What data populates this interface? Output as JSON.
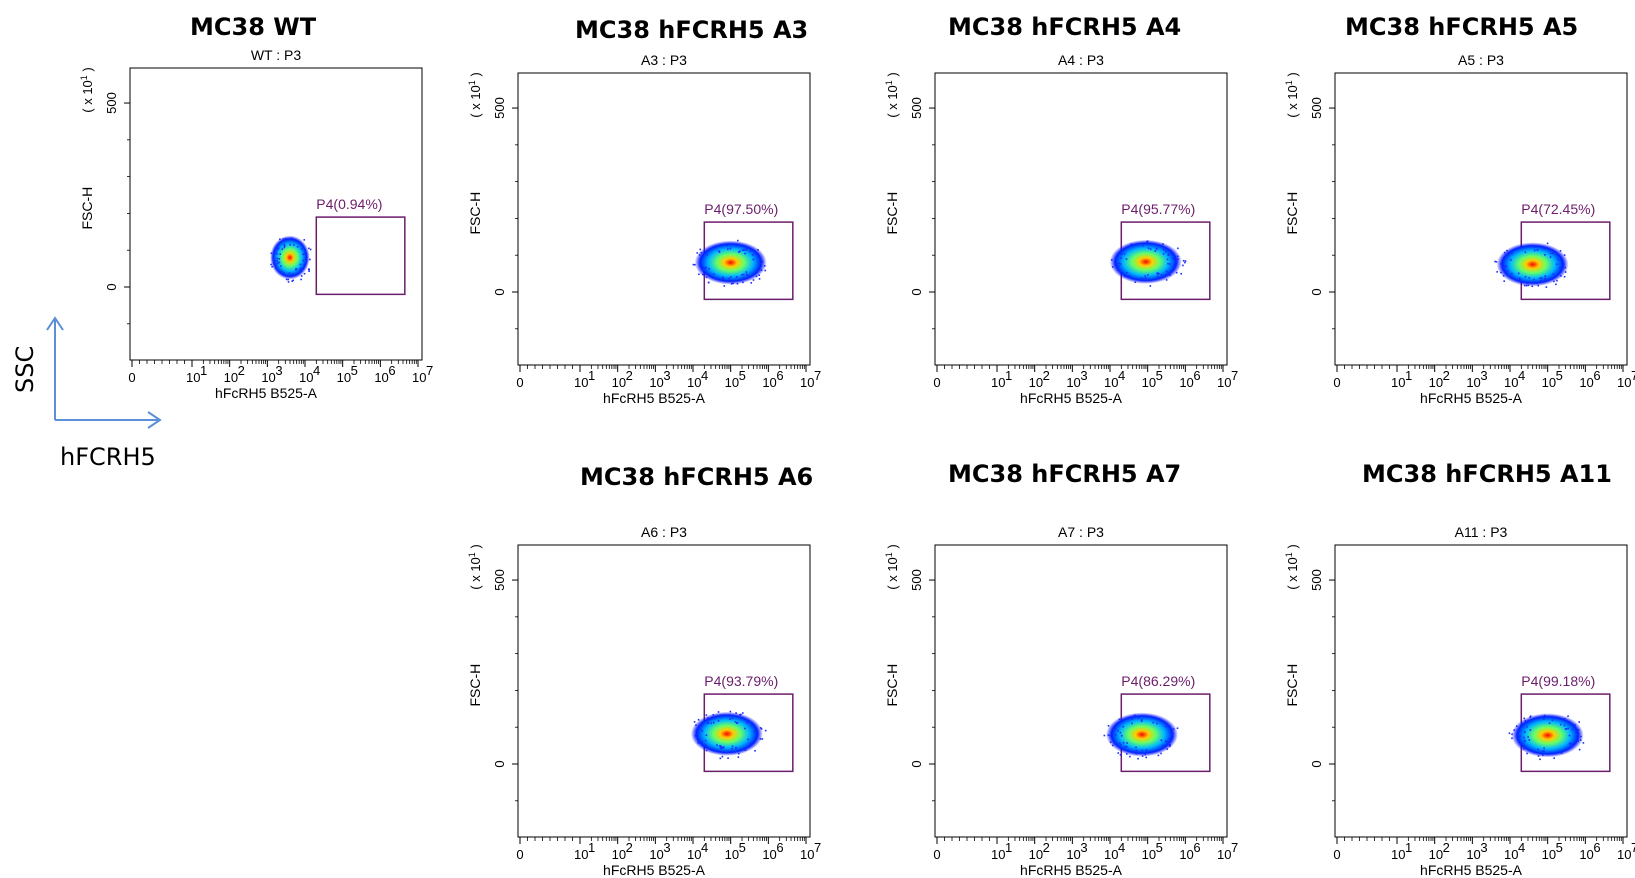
{
  "legend": {
    "y_arrow_label": "SSC",
    "x_arrow_label": "hFCRH5",
    "arrow_color": "#5b8fd8"
  },
  "colors": {
    "gate": "#6b1d6b",
    "density": [
      "#0000ff",
      "#00b0ff",
      "#00ff90",
      "#ffff00",
      "#ff0000"
    ]
  },
  "chart_data": [
    {
      "type": "scatter",
      "title": "MC38  WT",
      "subtitle": "WT : P3",
      "xlabel": "hFcRH5 B525-A",
      "ylabel": "FSC-H",
      "y_multiplier": "( x 10",
      "x_scale": "log",
      "x_ticks": [
        "0",
        "10",
        "10",
        "10",
        "10",
        "10",
        "10",
        "10"
      ],
      "x_tick_exp": [
        "",
        "1",
        "2",
        "3",
        "4",
        "5",
        "6",
        "7"
      ],
      "y_ticks": [
        "0",
        "500"
      ],
      "gate": {
        "name": "P4",
        "label": "P4(0.94%)",
        "percent": 0.94
      },
      "population": {
        "center_log10": 3.6,
        "center_y": 80
      }
    },
    {
      "type": "scatter",
      "title": "MC38 hFCRH5 A3",
      "subtitle": "A3 : P3",
      "xlabel": "hFcRH5 B525-A",
      "ylabel": "FSC-H",
      "y_multiplier": "( x 10",
      "x_scale": "log",
      "x_ticks": [
        "0",
        "10",
        "10",
        "10",
        "10",
        "10",
        "10",
        "10"
      ],
      "x_tick_exp": [
        "",
        "1",
        "2",
        "3",
        "4",
        "5",
        "6",
        "7"
      ],
      "y_ticks": [
        "0",
        "500"
      ],
      "gate": {
        "name": "P4",
        "label": "P4(97.50%)",
        "percent": 97.5
      },
      "population": {
        "center_log10": 5.0,
        "center_y": 80
      }
    },
    {
      "type": "scatter",
      "title": "MC38 hFCRH5 A4",
      "subtitle": "A4 : P3",
      "xlabel": "hFcRH5 B525-A",
      "ylabel": "FSC-H",
      "y_multiplier": "( x 10",
      "x_scale": "log",
      "x_ticks": [
        "0",
        "10",
        "10",
        "10",
        "10",
        "10",
        "10",
        "10"
      ],
      "x_tick_exp": [
        "",
        "1",
        "2",
        "3",
        "4",
        "5",
        "6",
        "7"
      ],
      "y_ticks": [
        "0",
        "500"
      ],
      "gate": {
        "name": "P4",
        "label": "P4(95.77%)",
        "percent": 95.77
      },
      "population": {
        "center_log10": 4.95,
        "center_y": 82
      }
    },
    {
      "type": "scatter",
      "title": "MC38 hFCRH5 A5",
      "subtitle": "A5 : P3",
      "xlabel": "hFcRH5 B525-A",
      "ylabel": "FSC-H",
      "y_multiplier": "( x 10",
      "x_scale": "log",
      "x_ticks": [
        "0",
        "10",
        "10",
        "10",
        "10",
        "10",
        "10",
        "10"
      ],
      "x_tick_exp": [
        "",
        "1",
        "2",
        "3",
        "4",
        "5",
        "6",
        "7"
      ],
      "y_ticks": [
        "0",
        "500"
      ],
      "gate": {
        "name": "P4",
        "label": "P4(72.45%)",
        "percent": 72.45
      },
      "population": {
        "center_log10": 4.6,
        "center_y": 75
      }
    },
    {
      "type": "scatter",
      "title": "MC38 hFCRH5 A6",
      "subtitle": "A6 : P3",
      "xlabel": "hFcRH5 B525-A",
      "ylabel": "FSC-H",
      "y_multiplier": "( x 10",
      "x_scale": "log",
      "x_ticks": [
        "0",
        "10",
        "10",
        "10",
        "10",
        "10",
        "10",
        "10"
      ],
      "x_tick_exp": [
        "",
        "1",
        "2",
        "3",
        "4",
        "5",
        "6",
        "7"
      ],
      "y_ticks": [
        "0",
        "500"
      ],
      "gate": {
        "name": "P4",
        "label": "P4(93.79%)",
        "percent": 93.79
      },
      "population": {
        "center_log10": 4.9,
        "center_y": 82
      }
    },
    {
      "type": "scatter",
      "title": "MC38 hFCRH5 A7",
      "subtitle": "A7 : P3",
      "xlabel": "hFcRH5 B525-A",
      "ylabel": "FSC-H",
      "y_multiplier": "( x 10",
      "x_scale": "log",
      "x_ticks": [
        "0",
        "10",
        "10",
        "10",
        "10",
        "10",
        "10",
        "10"
      ],
      "x_tick_exp": [
        "",
        "1",
        "2",
        "3",
        "4",
        "5",
        "6",
        "7"
      ],
      "y_ticks": [
        "0",
        "500"
      ],
      "gate": {
        "name": "P4",
        "label": "P4(86.29%)",
        "percent": 86.29
      },
      "population": {
        "center_log10": 4.85,
        "center_y": 80
      }
    },
    {
      "type": "scatter",
      "title": "MC38 hFCRH5 A11",
      "subtitle": "A11 : P3",
      "xlabel": "hFcRH5 B525-A",
      "ylabel": "FSC-H",
      "y_multiplier": "( x 10",
      "x_scale": "log",
      "x_ticks": [
        "0",
        "10",
        "10",
        "10",
        "10",
        "10",
        "10",
        "10"
      ],
      "x_tick_exp": [
        "",
        "1",
        "2",
        "3",
        "4",
        "5",
        "6",
        "7"
      ],
      "y_ticks": [
        "0",
        "500"
      ],
      "gate": {
        "name": "P4",
        "label": "P4(99.18%)",
        "percent": 99.18
      },
      "population": {
        "center_log10": 5.0,
        "center_y": 78
      }
    }
  ]
}
